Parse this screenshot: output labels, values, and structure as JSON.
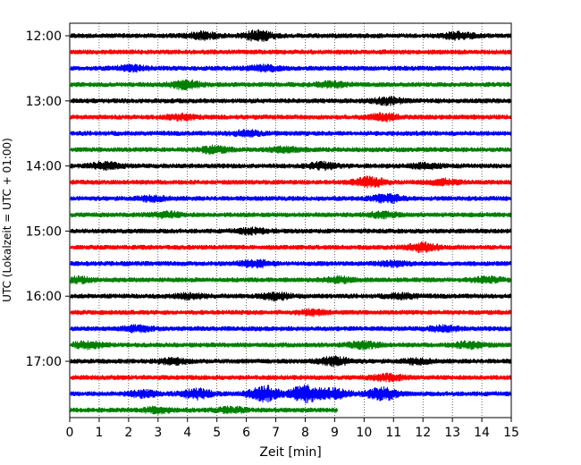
{
  "chart_data": {
    "type": "line",
    "title": "",
    "xlabel": "Zeit  [min]",
    "ylabel": "UTC (Lokalzeit = UTC + 01:00)",
    "xlim": [
      0,
      15
    ],
    "x_ticks": [
      "0",
      "1",
      "2",
      "3",
      "4",
      "5",
      "6",
      "7",
      "8",
      "9",
      "10",
      "11",
      "12",
      "13",
      "14",
      "15"
    ],
    "y_ticks": [
      "12:00",
      "13:00",
      "14:00",
      "15:00",
      "16:00",
      "17:00"
    ],
    "grid": "vertical-dotted",
    "trace_interval_min": 15,
    "colors": [
      "#000000",
      "#ff0000",
      "#0000ff",
      "#008000"
    ],
    "series": [
      {
        "start": "12:00",
        "color": "#000000",
        "end_min": 15,
        "bursts": [
          {
            "t": 4.5,
            "a": 2
          },
          {
            "t": 6.4,
            "a": 3
          },
          {
            "t": 13.2,
            "a": 2
          }
        ]
      },
      {
        "start": "12:15",
        "color": "#ff0000",
        "end_min": 15,
        "bursts": []
      },
      {
        "start": "12:30",
        "color": "#0000ff",
        "end_min": 15,
        "bursts": [
          {
            "t": 2.1,
            "a": 1.5
          },
          {
            "t": 6.6,
            "a": 1.5
          }
        ]
      },
      {
        "start": "12:45",
        "color": "#008000",
        "end_min": 15,
        "bursts": [
          {
            "t": 3.9,
            "a": 2.5
          },
          {
            "t": 8.9,
            "a": 1.5
          }
        ]
      },
      {
        "start": "13:00",
        "color": "#000000",
        "end_min": 15,
        "bursts": [
          {
            "t": 10.8,
            "a": 2
          }
        ]
      },
      {
        "start": "13:15",
        "color": "#ff0000",
        "end_min": 15,
        "bursts": [
          {
            "t": 3.8,
            "a": 1.5
          },
          {
            "t": 10.7,
            "a": 2
          }
        ]
      },
      {
        "start": "13:30",
        "color": "#0000ff",
        "end_min": 15,
        "bursts": [
          {
            "t": 6.0,
            "a": 1.5
          }
        ]
      },
      {
        "start": "13:45",
        "color": "#008000",
        "end_min": 15,
        "bursts": [
          {
            "t": 4.9,
            "a": 2
          },
          {
            "t": 7.3,
            "a": 1.5
          }
        ]
      },
      {
        "start": "14:00",
        "color": "#000000",
        "end_min": 15,
        "bursts": [
          {
            "t": 1.2,
            "a": 2
          },
          {
            "t": 8.6,
            "a": 2
          },
          {
            "t": 12.1,
            "a": 1.5
          }
        ]
      },
      {
        "start": "14:15",
        "color": "#ff0000",
        "end_min": 15,
        "bursts": [
          {
            "t": 10.2,
            "a": 3
          },
          {
            "t": 12.7,
            "a": 1.5
          }
        ]
      },
      {
        "start": "14:30",
        "color": "#0000ff",
        "end_min": 15,
        "bursts": [
          {
            "t": 2.8,
            "a": 1.5
          },
          {
            "t": 10.8,
            "a": 2.5
          }
        ]
      },
      {
        "start": "14:45",
        "color": "#008000",
        "end_min": 15,
        "bursts": [
          {
            "t": 3.3,
            "a": 1.5
          },
          {
            "t": 10.6,
            "a": 1.5
          }
        ]
      },
      {
        "start": "15:00",
        "color": "#000000",
        "end_min": 15,
        "bursts": [
          {
            "t": 6.2,
            "a": 1.5
          }
        ]
      },
      {
        "start": "15:15",
        "color": "#ff0000",
        "end_min": 15,
        "bursts": [
          {
            "t": 12.0,
            "a": 2.5
          }
        ]
      },
      {
        "start": "15:30",
        "color": "#0000ff",
        "end_min": 15,
        "bursts": [
          {
            "t": 6.3,
            "a": 2
          },
          {
            "t": 11.0,
            "a": 1.5
          }
        ]
      },
      {
        "start": "15:45",
        "color": "#008000",
        "end_min": 15,
        "bursts": [
          {
            "t": 0.3,
            "a": 1.5
          },
          {
            "t": 9.1,
            "a": 1.5
          },
          {
            "t": 14.2,
            "a": 1.5
          }
        ]
      },
      {
        "start": "16:00",
        "color": "#000000",
        "end_min": 15,
        "bursts": [
          {
            "t": 4.1,
            "a": 1.5
          },
          {
            "t": 7.0,
            "a": 2
          },
          {
            "t": 11.3,
            "a": 1.5
          }
        ]
      },
      {
        "start": "16:15",
        "color": "#ff0000",
        "end_min": 15,
        "bursts": [
          {
            "t": 8.3,
            "a": 1.5
          }
        ]
      },
      {
        "start": "16:30",
        "color": "#0000ff",
        "end_min": 15,
        "bursts": [
          {
            "t": 2.3,
            "a": 1.5
          },
          {
            "t": 12.7,
            "a": 1.5
          }
        ]
      },
      {
        "start": "16:45",
        "color": "#008000",
        "end_min": 15,
        "bursts": [
          {
            "t": 0.6,
            "a": 2
          },
          {
            "t": 10.0,
            "a": 2
          },
          {
            "t": 13.6,
            "a": 2
          }
        ]
      },
      {
        "start": "17:00",
        "color": "#000000",
        "end_min": 15,
        "bursts": [
          {
            "t": 3.5,
            "a": 1.5
          },
          {
            "t": 9.0,
            "a": 2.5
          },
          {
            "t": 11.8,
            "a": 1.5
          }
        ]
      },
      {
        "start": "17:15",
        "color": "#ff0000",
        "end_min": 15,
        "bursts": [
          {
            "t": 10.8,
            "a": 2
          }
        ]
      },
      {
        "start": "17:30",
        "color": "#0000ff",
        "end_min": 15,
        "bursts": [
          {
            "t": 2.5,
            "a": 2
          },
          {
            "t": 4.3,
            "a": 3
          },
          {
            "t": 6.6,
            "a": 5
          },
          {
            "t": 8.0,
            "a": 5
          },
          {
            "t": 9.0,
            "a": 3
          },
          {
            "t": 10.6,
            "a": 4
          }
        ]
      },
      {
        "start": "17:45",
        "color": "#008000",
        "end_min": 9.1,
        "bursts": [
          {
            "t": 3.0,
            "a": 1.5
          },
          {
            "t": 5.5,
            "a": 1.5
          }
        ]
      }
    ]
  }
}
